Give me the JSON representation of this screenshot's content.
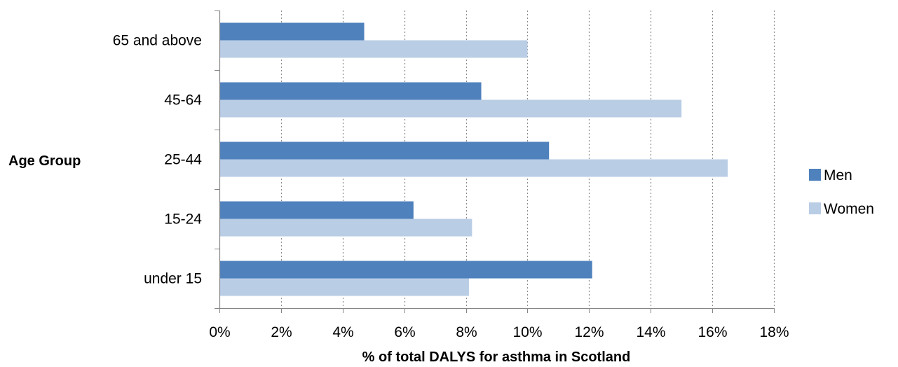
{
  "chart_data": {
    "type": "bar",
    "orientation": "horizontal",
    "categories": [
      "65 and above",
      "45-64",
      "25-44",
      "15-24",
      "under 15"
    ],
    "series": [
      {
        "name": "Men",
        "values": [
          4.7,
          8.5,
          10.7,
          6.3,
          12.1
        ],
        "color": "#4F81BD"
      },
      {
        "name": "Women",
        "values": [
          10.0,
          15.0,
          16.5,
          8.2,
          8.1
        ],
        "color": "#B9CDE5"
      }
    ],
    "xlabel": "% of total DALYS for asthma in Scotland",
    "ylabel": "Age Group",
    "xlim": [
      0,
      18
    ],
    "xticks": [
      0,
      2,
      4,
      6,
      8,
      10,
      12,
      14,
      16,
      18
    ],
    "xtick_labels": [
      "0%",
      "2%",
      "4%",
      "6%",
      "8%",
      "10%",
      "12%",
      "14%",
      "16%",
      "18%"
    ],
    "grid": "vertical dotted",
    "legend_position": "right"
  }
}
